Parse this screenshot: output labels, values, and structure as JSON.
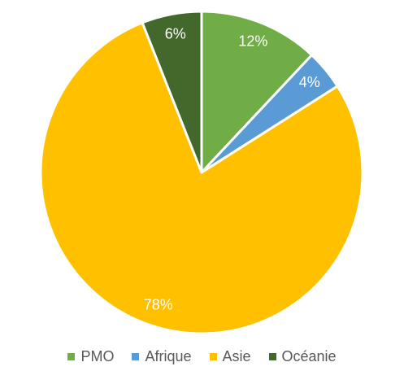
{
  "chart_data": {
    "type": "pie",
    "categories": [
      "PMO",
      "Afrique",
      "Asie",
      "Océanie"
    ],
    "values": [
      12,
      4,
      78,
      6
    ],
    "value_labels": [
      "12%",
      "4%",
      "78%",
      "6%"
    ],
    "colors": [
      "#70ad47",
      "#5b9bd5",
      "#ffc000",
      "#43682b"
    ],
    "legend": "bottom"
  }
}
